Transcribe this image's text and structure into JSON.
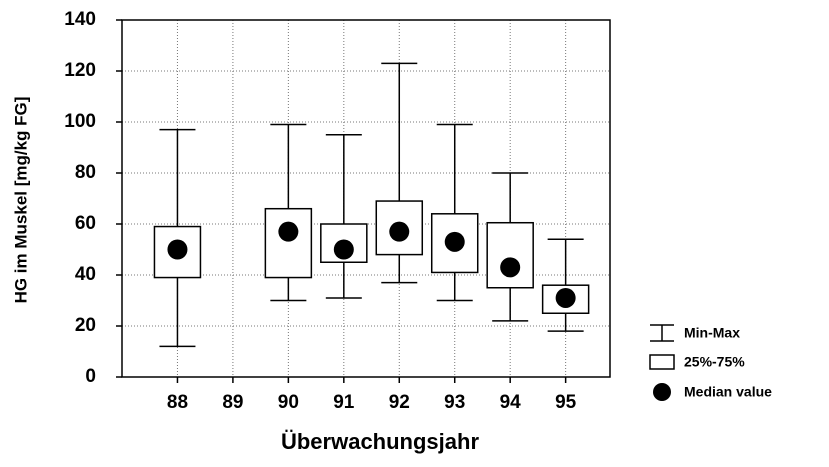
{
  "chart_data": {
    "type": "box",
    "x_label": "Überwachungsjahr",
    "y_label": "HG im Muskel [mg/kg FG]",
    "x": [
      88,
      89,
      90,
      91,
      92,
      93,
      94,
      95
    ],
    "min": [
      12,
      null,
      30,
      31,
      37,
      30,
      22,
      18
    ],
    "q1": [
      39,
      null,
      39,
      45,
      48,
      41,
      35,
      25
    ],
    "median": [
      50,
      null,
      57,
      50,
      57,
      53,
      43,
      31
    ],
    "q3": [
      59,
      null,
      66,
      60,
      69,
      64,
      60.5,
      36
    ],
    "max": [
      97,
      null,
      99,
      95,
      123,
      99,
      80,
      54
    ],
    "xlim": [
      87,
      95.8
    ],
    "xticks": [
      88,
      89,
      90,
      91,
      92,
      93,
      94,
      95
    ],
    "ylim": [
      0,
      140
    ],
    "yticks": [
      0,
      20,
      40,
      60,
      80,
      100,
      120,
      140
    ],
    "grid": true,
    "color": "#000000",
    "legend": {
      "whisker": "Min-Max",
      "box": "25%-75%",
      "median": "Median value"
    }
  }
}
